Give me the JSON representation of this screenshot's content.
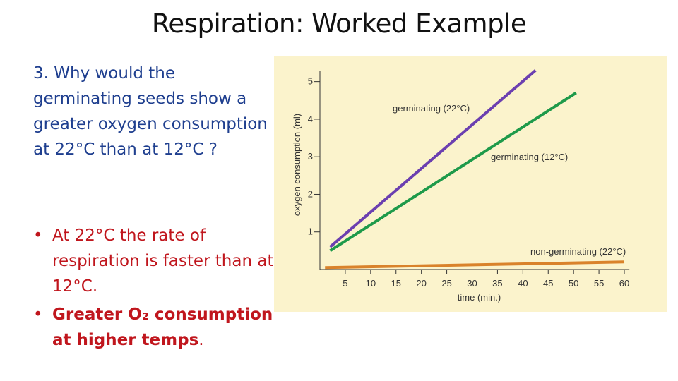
{
  "slide": {
    "title": "Respiration: Worked Example",
    "question": "3. Why would the germinating seeds show a greater oxygen consumption at 22°C than at 12°C ?",
    "answer_1": "At 22°C the rate of respiration is faster than at 12°C.",
    "answer_2_bold": "Greater O₂ consumption at higher temps",
    "answer_2_tail": ".",
    "bullet_glyph": "•"
  },
  "colors": {
    "title": "#111111",
    "question": "#1f3f8f",
    "answer": "#c0161d",
    "panel_background": "#fbf3cc",
    "germinating_22": "#6b3fb0",
    "germinating_12": "#1e9a4a",
    "non_germinating_22": "#d9822b"
  },
  "chart_data": {
    "type": "line",
    "title": "",
    "xlabel": "time (min.)",
    "ylabel": "oxygen consumption (ml)",
    "xlim": [
      0,
      61
    ],
    "ylim": [
      0,
      5.35
    ],
    "xticks": [
      5,
      10,
      15,
      20,
      25,
      30,
      35,
      40,
      45,
      50,
      55,
      60
    ],
    "yticks": [
      1,
      2,
      3,
      4,
      5
    ],
    "grid": false,
    "legend": "none (labels placed beside lines)",
    "series": [
      {
        "name": "germinating (22°C)",
        "color": "#6b3fb0",
        "x": [
          2,
          42.5
        ],
        "y": [
          0.6,
          5.3
        ]
      },
      {
        "name": "germinating (12°C)",
        "color": "#1e9a4a",
        "x": [
          2,
          50.5
        ],
        "y": [
          0.5,
          4.7
        ]
      },
      {
        "name": "non-germinating (22°C)",
        "color": "#d9822b",
        "x": [
          1,
          60
        ],
        "y": [
          0.05,
          0.2
        ]
      }
    ]
  }
}
